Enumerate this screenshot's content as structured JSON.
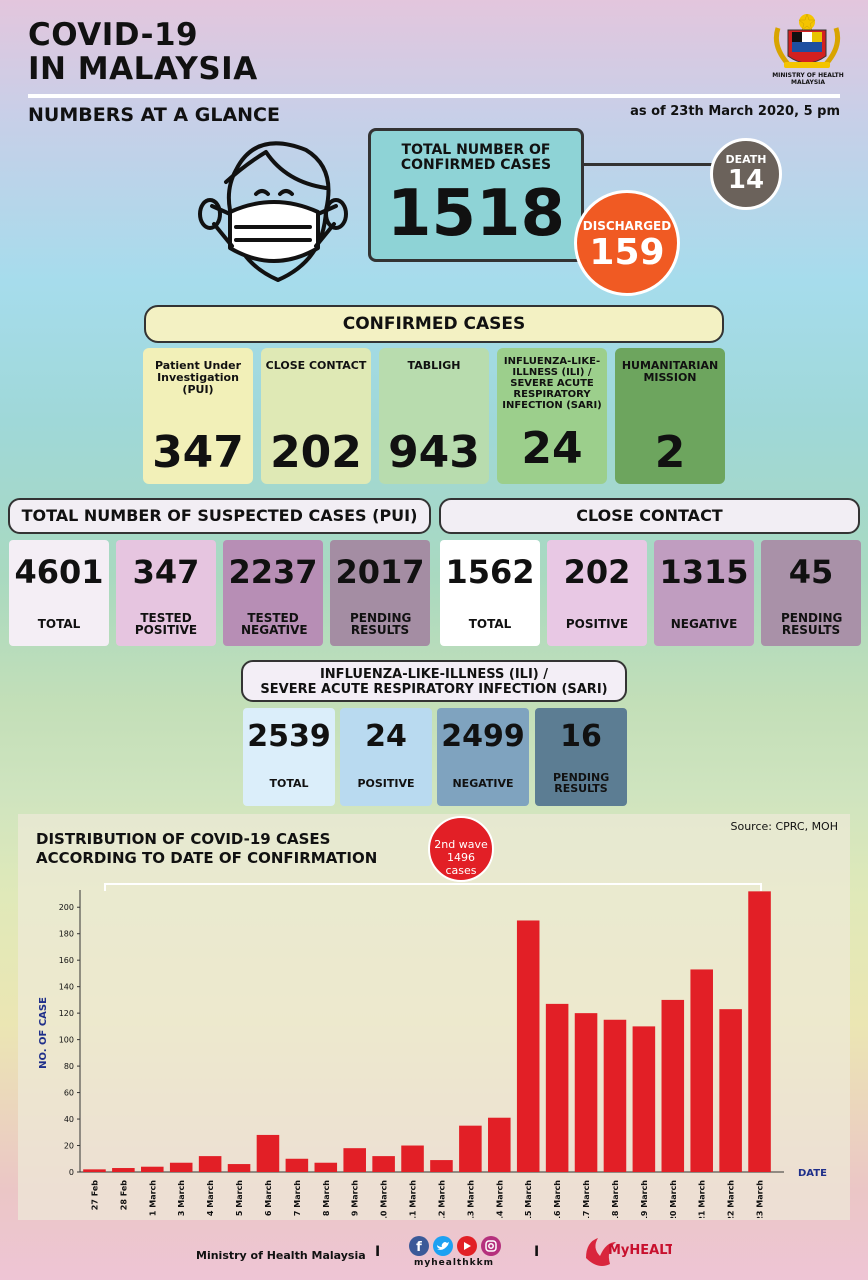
{
  "header": {
    "title_line1": "COVID-19",
    "title_line2": "IN MALAYSIA",
    "subtitle": "NUMBERS AT A GLANCE",
    "as_of": "as of 23th March 2020, 5 pm",
    "ministry_label": "MINISTRY OF HEALTH MALAYSIA"
  },
  "totals": {
    "confirmed_label": "TOTAL NUMBER OF CONFIRMED CASES",
    "confirmed_value": "1518",
    "death_label": "DEATH",
    "death_value": "14",
    "discharged_label": "DISCHARGED",
    "discharged_value": "159"
  },
  "confirmed_cases": {
    "header": "CONFIRMED CASES",
    "items": [
      {
        "label": "Patient Under Investigation (PUI)",
        "value": "347",
        "color": "#f2f0b8"
      },
      {
        "label": "CLOSE CONTACT",
        "value": "202",
        "color": "#dfe9b5"
      },
      {
        "label": "TABLIGH",
        "value": "943",
        "color": "#b8dcae"
      },
      {
        "label": "INFLUENZA-LIKE-ILLNESS (ILI) / SEVERE ACUTE RESPIRATORY INFECTION (SARI)",
        "value": "24",
        "color": "#9ccf8c"
      },
      {
        "label": "HUMANITARIAN MISSION",
        "value": "2",
        "color": "#6da55e"
      }
    ]
  },
  "suspected": {
    "header": "TOTAL NUMBER OF SUSPECTED CASES (PUI)",
    "items": [
      {
        "value": "4601",
        "label": "TOTAL",
        "color": "#f4eef5"
      },
      {
        "value": "347",
        "label": "TESTED POSITIVE",
        "color": "#e6c5e0"
      },
      {
        "value": "2237",
        "label": "TESTED NEGATIVE",
        "color": "#b78eb5"
      },
      {
        "value": "2017",
        "label": "PENDING RESULTS",
        "color": "#a48da3"
      }
    ]
  },
  "close_contact": {
    "header": "CLOSE CONTACT",
    "items": [
      {
        "value": "1562",
        "label": "TOTAL",
        "color": "#ffffff"
      },
      {
        "value": "202",
        "label": "POSITIVE",
        "color": "#e8c8e4"
      },
      {
        "value": "1315",
        "label": "NEGATIVE",
        "color": "#c09dc0"
      },
      {
        "value": "45",
        "label": "PENDING RESULTS",
        "color": "#a991a8"
      }
    ]
  },
  "ili_sari": {
    "header_line1": "INFLUENZA-LIKE-ILLNESS (ILI) /",
    "header_line2": "SEVERE ACUTE RESPIRATORY INFECTION (SARI)",
    "items": [
      {
        "value": "2539",
        "label": "TOTAL",
        "color": "#dbeefa"
      },
      {
        "value": "24",
        "label": "POSITIVE",
        "color": "#b9daf0"
      },
      {
        "value": "2499",
        "label": "NEGATIVE",
        "color": "#7fa3bf"
      },
      {
        "value": "16",
        "label": "PENDING RESULTS",
        "color": "#5c7d93"
      }
    ]
  },
  "chart_labels": {
    "title_line1": "DISTRIBUTION OF COVID-19 CASES",
    "title_line2": "ACCORDING TO DATE OF CONFIRMATION",
    "source": "Source: CPRC, MOH",
    "wave_line1": "2nd wave",
    "wave_line2": "1496 cases"
  },
  "chart_data": {
    "type": "bar",
    "categories": [
      "27 Feb",
      "28 Feb",
      "1 March",
      "3 March",
      "4 March",
      "5 March",
      "6 March",
      "7 March",
      "8 March",
      "9 March",
      "10 March",
      "11 March",
      "12 March",
      "13 March",
      "14 March",
      "15 March",
      "16 March",
      "17 March",
      "18 March",
      "19 March",
      "20 March",
      "21 March",
      "22 March",
      "23 March"
    ],
    "values": [
      2,
      3,
      4,
      7,
      12,
      6,
      28,
      10,
      7,
      18,
      12,
      20,
      9,
      35,
      41,
      190,
      127,
      120,
      115,
      110,
      130,
      153,
      123,
      212
    ],
    "xlabel": "DATE",
    "ylabel": "NO. OF CASE",
    "ylim": [
      0,
      210
    ],
    "yticks": [
      0,
      20,
      40,
      60,
      80,
      100,
      120,
      140,
      160,
      180,
      200
    ],
    "bar_color": "#e21f26"
  },
  "footer": {
    "ministry": "Ministry of Health Malaysia",
    "separator": "I",
    "handle": "myhealthkkm",
    "myhealth": "MyHEALTH"
  }
}
